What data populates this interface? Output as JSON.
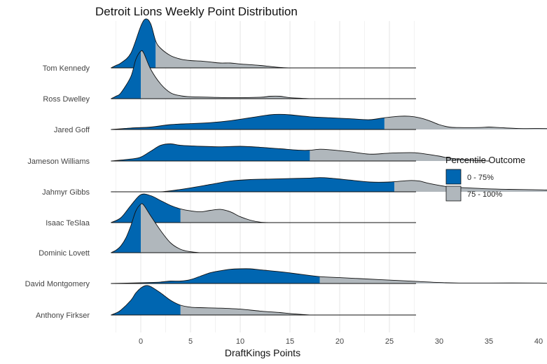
{
  "chart_data": {
    "type": "ridgeline",
    "title": "Detroit Lions Weekly Point Distribution",
    "xlabel": "DraftKings Points",
    "ylabel": "",
    "x_ticks": [
      0,
      5,
      10,
      15,
      20,
      25,
      30,
      35,
      40
    ],
    "xlim": [
      -6,
      56
    ],
    "grid": true,
    "legend": {
      "title": "Percentile Outcome",
      "position": "right",
      "entries": [
        {
          "label": "0 - 75%",
          "color": "#0066B1"
        },
        {
          "label": "75 - 100%",
          "color": "#B0B7BC"
        }
      ]
    },
    "series": [
      {
        "name": "Tom Kennedy",
        "p75": 1.5,
        "density": [
          [
            -3,
            0
          ],
          [
            -2.5,
            0.05
          ],
          [
            -2,
            0.1
          ],
          [
            -1,
            0.3
          ],
          [
            0,
            0.85
          ],
          [
            0.5,
            1.0
          ],
          [
            1,
            0.9
          ],
          [
            1.5,
            0.55
          ],
          [
            2,
            0.4
          ],
          [
            3,
            0.25
          ],
          [
            4,
            0.18
          ],
          [
            5,
            0.15
          ],
          [
            6,
            0.14
          ],
          [
            7,
            0.12
          ],
          [
            8,
            0.1
          ],
          [
            9,
            0.1
          ],
          [
            10,
            0.08
          ],
          [
            12,
            0.05
          ],
          [
            14,
            0.01
          ],
          [
            15,
            0.0
          ]
        ]
      },
      {
        "name": "Ross Dwelley",
        "p75": 0.0,
        "density": [
          [
            -3,
            0
          ],
          [
            -2.5,
            0.05
          ],
          [
            -2,
            0.12
          ],
          [
            -1,
            0.45
          ],
          [
            -0.5,
            0.8
          ],
          [
            0,
            0.97
          ],
          [
            0.3,
            0.93
          ],
          [
            1,
            0.6
          ],
          [
            2,
            0.3
          ],
          [
            3,
            0.12
          ],
          [
            4,
            0.06
          ],
          [
            5,
            0.04
          ],
          [
            7,
            0.03
          ],
          [
            9,
            0.02
          ],
          [
            12,
            0.03
          ],
          [
            13,
            0.05
          ],
          [
            14,
            0.05
          ],
          [
            15,
            0.02
          ],
          [
            17,
            0.0
          ]
        ]
      },
      {
        "name": "Jared Goff",
        "p75": 24.5,
        "density": [
          [
            -3,
            0
          ],
          [
            -1,
            0.03
          ],
          [
            1,
            0.05
          ],
          [
            3,
            0.1
          ],
          [
            5,
            0.12
          ],
          [
            7,
            0.14
          ],
          [
            9,
            0.18
          ],
          [
            11,
            0.24
          ],
          [
            13,
            0.3
          ],
          [
            14,
            0.31
          ],
          [
            15,
            0.3
          ],
          [
            17,
            0.26
          ],
          [
            19,
            0.24
          ],
          [
            21,
            0.22
          ],
          [
            23,
            0.2
          ],
          [
            24.5,
            0.24
          ],
          [
            26,
            0.27
          ],
          [
            27,
            0.27
          ],
          [
            28,
            0.24
          ],
          [
            29,
            0.18
          ],
          [
            30,
            0.1
          ],
          [
            31,
            0.05
          ],
          [
            32,
            0.04
          ],
          [
            34,
            0.04
          ],
          [
            35,
            0.05
          ],
          [
            36,
            0.04
          ],
          [
            38,
            0.02
          ],
          [
            40,
            0.02
          ],
          [
            45,
            0.01
          ],
          [
            50,
            0.01
          ],
          [
            52,
            0.0
          ]
        ]
      },
      {
        "name": "Jameson Williams",
        "p75": 17.0,
        "density": [
          [
            -3,
            0
          ],
          [
            -1,
            0.04
          ],
          [
            0,
            0.08
          ],
          [
            1,
            0.2
          ],
          [
            2,
            0.32
          ],
          [
            3,
            0.35
          ],
          [
            4,
            0.32
          ],
          [
            6,
            0.3
          ],
          [
            8,
            0.29
          ],
          [
            10,
            0.3
          ],
          [
            12,
            0.28
          ],
          [
            14,
            0.25
          ],
          [
            16,
            0.22
          ],
          [
            17,
            0.22
          ],
          [
            18,
            0.24
          ],
          [
            19,
            0.23
          ],
          [
            21,
            0.19
          ],
          [
            23,
            0.14
          ],
          [
            25,
            0.16
          ],
          [
            27,
            0.17
          ],
          [
            28,
            0.16
          ],
          [
            30,
            0.1
          ],
          [
            31,
            0.06
          ],
          [
            33,
            0.02
          ],
          [
            35,
            0.0
          ]
        ]
      },
      {
        "name": "Jahmyr Gibbs",
        "p75": 25.5,
        "density": [
          [
            -3,
            0
          ],
          [
            -1,
            0.0
          ],
          [
            0,
            0.0
          ],
          [
            1,
            0.0
          ],
          [
            2,
            0.0
          ],
          [
            3,
            0.02
          ],
          [
            5,
            0.08
          ],
          [
            7,
            0.15
          ],
          [
            9,
            0.22
          ],
          [
            11,
            0.25
          ],
          [
            13,
            0.26
          ],
          [
            15,
            0.27
          ],
          [
            17,
            0.28
          ],
          [
            18,
            0.29
          ],
          [
            19,
            0.28
          ],
          [
            21,
            0.24
          ],
          [
            23,
            0.2
          ],
          [
            25,
            0.2
          ],
          [
            27,
            0.23
          ],
          [
            28,
            0.22
          ],
          [
            29,
            0.17
          ],
          [
            31,
            0.1
          ],
          [
            33,
            0.08
          ],
          [
            35,
            0.06
          ],
          [
            37,
            0.05
          ],
          [
            40,
            0.04
          ],
          [
            42,
            0.03
          ],
          [
            44,
            0.03
          ],
          [
            46,
            0.03
          ],
          [
            48,
            0.03
          ],
          [
            50,
            0.03
          ],
          [
            51,
            0.0
          ]
        ]
      },
      {
        "name": "Isaac TeSlaa",
        "p75": 4.0,
        "density": [
          [
            -3,
            0
          ],
          [
            -2,
            0.1
          ],
          [
            -1,
            0.35
          ],
          [
            0,
            0.57
          ],
          [
            1,
            0.55
          ],
          [
            2,
            0.45
          ],
          [
            3,
            0.35
          ],
          [
            4,
            0.28
          ],
          [
            5,
            0.24
          ],
          [
            6,
            0.22
          ],
          [
            7,
            0.25
          ],
          [
            8,
            0.27
          ],
          [
            9,
            0.22
          ],
          [
            10,
            0.12
          ],
          [
            11,
            0.05
          ],
          [
            12,
            0.01
          ],
          [
            13,
            0.0
          ]
        ]
      },
      {
        "name": "Dominic Lovett",
        "p75": 0.0,
        "density": [
          [
            -3,
            0
          ],
          [
            -2.5,
            0.05
          ],
          [
            -2,
            0.14
          ],
          [
            -1.5,
            0.3
          ],
          [
            -1,
            0.55
          ],
          [
            -0.5,
            0.85
          ],
          [
            0,
            0.99
          ],
          [
            0.3,
            0.97
          ],
          [
            1,
            0.75
          ],
          [
            2,
            0.45
          ],
          [
            3,
            0.2
          ],
          [
            4,
            0.07
          ],
          [
            5,
            0.02
          ],
          [
            6,
            0.0
          ]
        ]
      },
      {
        "name": "David Montgomery",
        "p75": 18.0,
        "density": [
          [
            -3,
            0
          ],
          [
            -1,
            0.01
          ],
          [
            1,
            0.02
          ],
          [
            2,
            0.03
          ],
          [
            3,
            0.05
          ],
          [
            4,
            0.05
          ],
          [
            5,
            0.08
          ],
          [
            6,
            0.15
          ],
          [
            7,
            0.22
          ],
          [
            8,
            0.26
          ],
          [
            9,
            0.29
          ],
          [
            10,
            0.3
          ],
          [
            11,
            0.3
          ],
          [
            12,
            0.28
          ],
          [
            14,
            0.24
          ],
          [
            16,
            0.19
          ],
          [
            18,
            0.14
          ],
          [
            20,
            0.12
          ],
          [
            22,
            0.1
          ],
          [
            24,
            0.08
          ],
          [
            26,
            0.06
          ],
          [
            28,
            0.04
          ],
          [
            30,
            0.02
          ],
          [
            32,
            0.01
          ],
          [
            35,
            0.01
          ],
          [
            40,
            0.01
          ],
          [
            41,
            0.0
          ]
        ]
      },
      {
        "name": "Anthony Firkser",
        "p75": 4.0,
        "density": [
          [
            -3,
            0
          ],
          [
            -2.5,
            0.04
          ],
          [
            -2,
            0.1
          ],
          [
            -1,
            0.3
          ],
          [
            -0.5,
            0.45
          ],
          [
            0,
            0.55
          ],
          [
            0.5,
            0.6
          ],
          [
            1,
            0.58
          ],
          [
            2,
            0.45
          ],
          [
            3,
            0.3
          ],
          [
            4,
            0.2
          ],
          [
            5,
            0.16
          ],
          [
            6,
            0.15
          ],
          [
            8,
            0.14
          ],
          [
            10,
            0.12
          ],
          [
            12,
            0.08
          ],
          [
            14,
            0.05
          ],
          [
            15,
            0.03
          ],
          [
            17,
            0.0
          ]
        ]
      }
    ]
  }
}
